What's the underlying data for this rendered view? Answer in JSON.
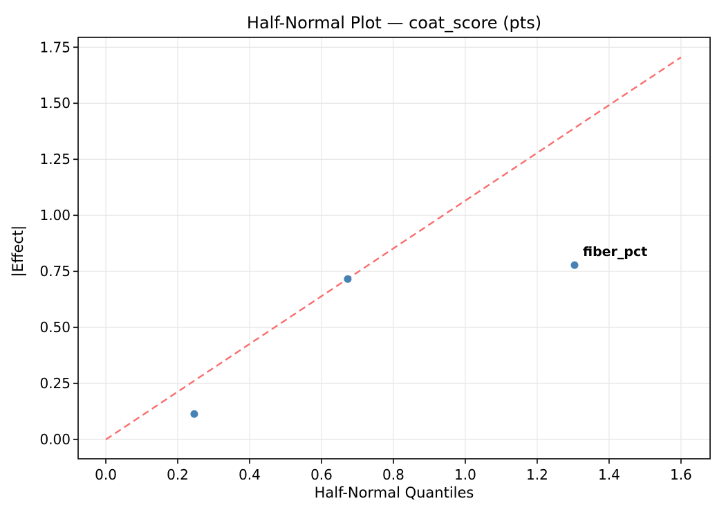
{
  "figure": {
    "background": "#ffffff"
  },
  "chart_data": {
    "type": "scatter",
    "title": "Half-Normal Plot — coat_score (pts)",
    "xlabel": "Half-Normal Quantiles",
    "ylabel": "|Effect|",
    "grid": true,
    "legend": "none",
    "x_axis": {
      "lim": [
        -0.077,
        1.681
      ],
      "ticks": [
        0.0,
        0.2,
        0.4,
        0.6,
        0.8,
        1.0,
        1.2,
        1.4,
        1.6
      ],
      "tick_labels": [
        "0.0",
        "0.2",
        "0.4",
        "0.6",
        "0.8",
        "1.0",
        "1.2",
        "1.4",
        "1.6"
      ]
    },
    "y_axis": {
      "lim": [
        -0.086,
        1.794
      ],
      "ticks": [
        0.0,
        0.25,
        0.5,
        0.75,
        1.0,
        1.25,
        1.5,
        1.75
      ],
      "tick_labels": [
        "0.00",
        "0.25",
        "0.50",
        "0.75",
        "1.00",
        "1.25",
        "1.50",
        "1.75"
      ]
    },
    "points": [
      {
        "x": 0.246,
        "y": 0.114
      },
      {
        "x": 0.673,
        "y": 0.716
      },
      {
        "x": 1.304,
        "y": 0.778
      }
    ],
    "reference_line": {
      "x": [
        0.0,
        1.6
      ],
      "y": [
        0.0,
        1.705
      ],
      "style": "dashed"
    },
    "annotation": {
      "label": "fiber_pct",
      "x": 1.304,
      "y": 0.778
    },
    "colors": {
      "point": "#4682b4",
      "reference_line": "#f96e6e",
      "annotation": "#ee0000",
      "grid": "#e6e6e6",
      "spine": "#1a1a1a",
      "text": "#000000"
    }
  }
}
